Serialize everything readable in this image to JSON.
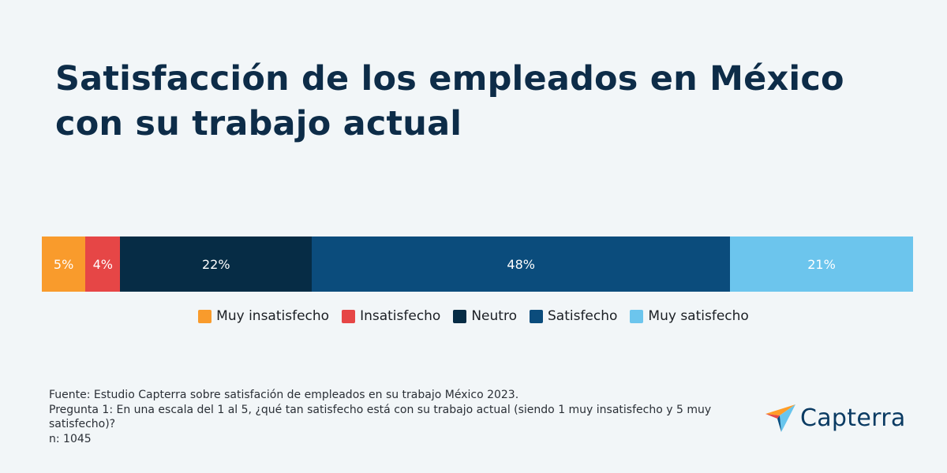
{
  "title": "Satisfacción de los empleados en México con su trabajo actual",
  "chart_data": {
    "type": "bar",
    "orientation": "horizontal-stacked-100",
    "categories": [
      "Muy insatisfecho",
      "Insatisfecho",
      "Neutro",
      "Satisfecho",
      "Muy satisfecho"
    ],
    "values": [
      5,
      4,
      22,
      48,
      21
    ],
    "labels": [
      "5%",
      "4%",
      "22%",
      "48%",
      "21%"
    ],
    "colors": [
      "#f99b2c",
      "#e64646",
      "#062c45",
      "#0b4c7c",
      "#6cc5ed"
    ],
    "legend_position": "bottom-center",
    "unit": "%"
  },
  "footer": {
    "source": "Fuente: Estudio Capterra sobre satisfación de empleados en su trabajo México 2023.",
    "question_line1": "Pregunta 1: En una escala del 1 al 5, ¿qué tan satisfecho está con su trabajo actual (siendo 1 muy insatisfecho y 5 muy",
    "question_line2": "satisfecho)?",
    "sample": "n: 1045"
  },
  "brand": {
    "name": "Capterra",
    "color": "#0b3b63",
    "icon": "capterra-arrow-icon"
  }
}
